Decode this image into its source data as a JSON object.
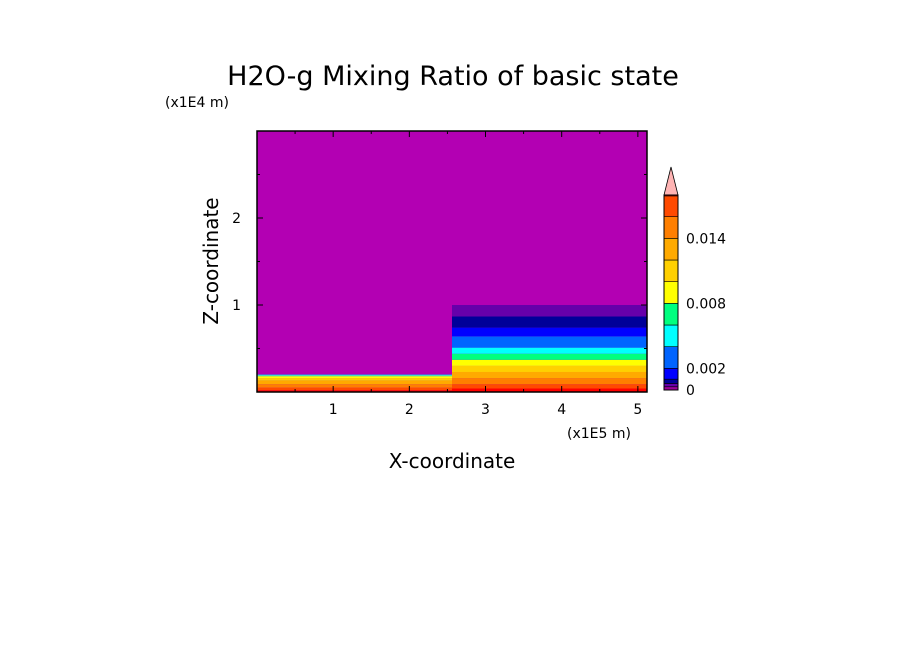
{
  "chart_data": {
    "type": "heatmap",
    "title": "H2O-g Mixing Ratio of basic state",
    "xlabel": "X-coordinate",
    "ylabel": "Z-coordinate",
    "x_scale_note": "(x1E5 m)",
    "y_scale_note": "(x1E4 m)",
    "xlim": [
      0,
      5.12
    ],
    "ylim": [
      0,
      3.0
    ],
    "x_ticks": [
      "1",
      "2",
      "3",
      "4",
      "5"
    ],
    "y_ticks": [
      "1",
      "2"
    ],
    "x_tick_values": [
      1,
      2,
      3,
      4,
      5
    ],
    "y_tick_values": [
      1,
      2
    ],
    "background_color": "#b300b3",
    "regions": [
      {
        "x0": 0.0,
        "x1": 2.56,
        "z0": 0.0,
        "z1": 0.02,
        "color": "#ff0000"
      },
      {
        "x0": 0.0,
        "x1": 2.56,
        "z0": 0.02,
        "z1": 0.05,
        "color": "#ff4a00"
      },
      {
        "x0": 0.0,
        "x1": 2.56,
        "z0": 0.05,
        "z1": 0.09,
        "color": "#ff7f00"
      },
      {
        "x0": 0.0,
        "x1": 2.56,
        "z0": 0.09,
        "z1": 0.13,
        "color": "#ffaa00"
      },
      {
        "x0": 0.0,
        "x1": 2.56,
        "z0": 0.13,
        "z1": 0.16,
        "color": "#ffd000"
      },
      {
        "x0": 0.0,
        "x1": 2.56,
        "z0": 0.16,
        "z1": 0.18,
        "color": "#ffff00"
      },
      {
        "x0": 0.0,
        "x1": 2.56,
        "z0": 0.18,
        "z1": 0.19,
        "color": "#7fff7f"
      },
      {
        "x0": 0.0,
        "x1": 2.56,
        "z0": 0.19,
        "z1": 0.2,
        "color": "#00c8ff"
      },
      {
        "x0": 2.56,
        "x1": 5.12,
        "z0": 0.0,
        "z1": 0.04,
        "color": "#ff0000"
      },
      {
        "x0": 2.56,
        "x1": 5.12,
        "z0": 0.04,
        "z1": 0.09,
        "color": "#ff4a00"
      },
      {
        "x0": 2.56,
        "x1": 5.12,
        "z0": 0.09,
        "z1": 0.16,
        "color": "#ff7f00"
      },
      {
        "x0": 2.56,
        "x1": 5.12,
        "z0": 0.16,
        "z1": 0.23,
        "color": "#ffaa00"
      },
      {
        "x0": 2.56,
        "x1": 5.12,
        "z0": 0.23,
        "z1": 0.3,
        "color": "#ffd000"
      },
      {
        "x0": 2.56,
        "x1": 5.12,
        "z0": 0.3,
        "z1": 0.37,
        "color": "#ffff00"
      },
      {
        "x0": 2.56,
        "x1": 5.12,
        "z0": 0.37,
        "z1": 0.44,
        "color": "#00ff7f"
      },
      {
        "x0": 2.56,
        "x1": 5.12,
        "z0": 0.44,
        "z1": 0.51,
        "color": "#00ffff"
      },
      {
        "x0": 2.56,
        "x1": 5.12,
        "z0": 0.51,
        "z1": 0.64,
        "color": "#0064ff"
      },
      {
        "x0": 2.56,
        "x1": 5.12,
        "z0": 0.64,
        "z1": 0.74,
        "color": "#0000ff"
      },
      {
        "x0": 2.56,
        "x1": 5.12,
        "z0": 0.74,
        "z1": 0.87,
        "color": "#000099"
      },
      {
        "x0": 2.56,
        "x1": 5.12,
        "z0": 0.87,
        "z1": 1.0,
        "color": "#6600aa"
      }
    ],
    "colorbar": {
      "tick_labels": [
        "0",
        "0.002",
        "0.008",
        "0.014"
      ],
      "tick_values": [
        0,
        0.002,
        0.008,
        0.014
      ],
      "levels": [
        0,
        0.0003,
        0.0006,
        0.001,
        0.002,
        0.004,
        0.006,
        0.008,
        0.01,
        0.012,
        0.014,
        0.016,
        0.018
      ],
      "colors": [
        "#9b009b",
        "#6600aa",
        "#000099",
        "#0000ff",
        "#0064ff",
        "#00ffff",
        "#00ff7f",
        "#ffff00",
        "#ffd000",
        "#ffaa00",
        "#ff7f00",
        "#ff4a00",
        "#ff0000"
      ],
      "extend_color": "#ffb4b4"
    },
    "grid": false
  }
}
